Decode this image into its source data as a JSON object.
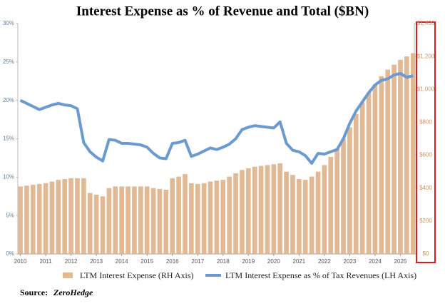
{
  "chart_data": {
    "type": "combo",
    "title": "Interest Expense as % of  Revenue and Total ($BN)",
    "x": [
      2010,
      2010.25,
      2010.5,
      2010.75,
      2011,
      2011.25,
      2011.5,
      2011.75,
      2012,
      2012.25,
      2012.5,
      2012.75,
      2013,
      2013.25,
      2013.5,
      2013.75,
      2014,
      2014.25,
      2014.5,
      2014.75,
      2015,
      2015.25,
      2015.5,
      2015.75,
      2016,
      2016.25,
      2016.5,
      2016.75,
      2017,
      2017.25,
      2017.5,
      2017.75,
      2018,
      2018.25,
      2018.5,
      2018.75,
      2019,
      2019.25,
      2019.5,
      2019.75,
      2020,
      2020.25,
      2020.5,
      2020.75,
      2021,
      2021.25,
      2021.5,
      2021.75,
      2022,
      2022.25,
      2022.5,
      2022.75,
      2023,
      2023.25,
      2023.5,
      2023.75,
      2024,
      2024.25,
      2024.5,
      2024.75,
      2025,
      2025.25,
      2025.5
    ],
    "series": [
      {
        "name": "LTM Interest Expense (RH Axis)",
        "type": "bar",
        "axis": "y2",
        "color": "#e2b995",
        "values": [
          410,
          415,
          420,
          425,
          430,
          440,
          450,
          455,
          460,
          460,
          460,
          370,
          360,
          350,
          400,
          410,
          410,
          410,
          410,
          410,
          410,
          400,
          395,
          390,
          460,
          470,
          485,
          430,
          425,
          430,
          440,
          445,
          450,
          470,
          490,
          510,
          520,
          530,
          535,
          540,
          545,
          550,
          500,
          480,
          455,
          450,
          470,
          500,
          540,
          590,
          640,
          700,
          770,
          850,
          920,
          980,
          1030,
          1080,
          1120,
          1150,
          1180,
          1200,
          1220
        ]
      },
      {
        "name": "LTM Interest Expense as % of Tax Revenues (LH Axis)",
        "type": "line",
        "axis": "y",
        "color": "#6a9ad0",
        "values": [
          20,
          19.6,
          19.2,
          18.8,
          19.1,
          19.4,
          19.6,
          19.4,
          19.3,
          18.9,
          14.5,
          13.3,
          12.6,
          12.1,
          14.9,
          14.8,
          14.4,
          14.4,
          14.3,
          14.2,
          13.9,
          13.1,
          12.5,
          12.4,
          14.4,
          14.5,
          14.8,
          12.7,
          13.0,
          13.4,
          13.8,
          13.6,
          13.9,
          14.3,
          15.0,
          16.2,
          16.5,
          16.7,
          16.6,
          16.5,
          16.4,
          17.2,
          14.4,
          13.5,
          13.3,
          12.8,
          11.8,
          13.1,
          13.0,
          13.3,
          13.6,
          15.0,
          17.0,
          18.6,
          19.8,
          21.0,
          22.0,
          22.6,
          22.8,
          23.3,
          23.5,
          23.0,
          23.2
        ]
      }
    ],
    "xlim": [
      2009.9,
      2025.55
    ],
    "xticks": [
      2010,
      2011,
      2012,
      2013,
      2014,
      2015,
      2016,
      2017,
      2018,
      2019,
      2020,
      2021,
      2022,
      2023,
      2024,
      2025
    ],
    "ylim": [
      0,
      30
    ],
    "yticks": [
      {
        "value": 0,
        "label": "0%"
      },
      {
        "value": 5,
        "label": "5%"
      },
      {
        "value": 10,
        "label": "10%"
      },
      {
        "value": 15,
        "label": "15%"
      },
      {
        "value": 20,
        "label": "20%"
      },
      {
        "value": 25,
        "label": "25%"
      },
      {
        "value": 30,
        "label": "30%"
      }
    ],
    "y2lim": [
      0,
      1400
    ],
    "y2ticks": [
      {
        "value": 0,
        "label": "$0"
      },
      {
        "value": 200,
        "label": "$200"
      },
      {
        "value": 400,
        "label": "$400"
      },
      {
        "value": 600,
        "label": "$600"
      },
      {
        "value": 800,
        "label": "$800"
      },
      {
        "value": 1000,
        "label": "$1,000"
      },
      {
        "value": 1200,
        "label": "$1,200"
      },
      {
        "value": 1400,
        "label": "$1,400"
      }
    ],
    "grid": false,
    "source": {
      "label": "Source:",
      "name": "ZeroHedge"
    }
  }
}
